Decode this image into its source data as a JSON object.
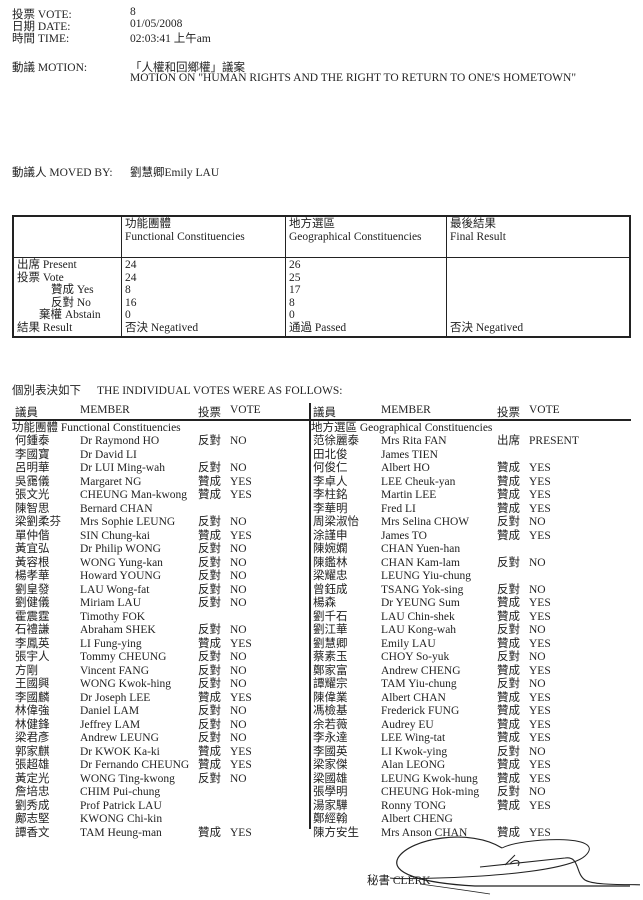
{
  "header": {
    "vote_label": "投票 VOTE:",
    "vote_value": "8",
    "date_label": "日期 DATE:",
    "date_value": "01/05/2008",
    "time_label": "時間 TIME:",
    "time_value": "02:03:41 上午am",
    "motion_label": "動議 MOTION:",
    "motion_zh": "「人權和回鄉權」議案",
    "motion_en": "MOTION ON \"HUMAN RIGHTS AND THE RIGHT TO RETURN TO ONE'S HOMETOWN\"",
    "moved_by_label": "動議人 MOVED BY:",
    "moved_by_value": "劉慧卿Emily LAU"
  },
  "summary": {
    "columns": [
      {
        "zh": "功能團體",
        "en": "Functional Constituencies"
      },
      {
        "zh": "地方選區",
        "en": "Geographical Constituencies"
      },
      {
        "zh": "最後結果",
        "en": "Final Result"
      }
    ],
    "row_labels": {
      "present": "出席 Present",
      "vote": "投票 Vote",
      "yes": "贊成 Yes",
      "no": "反對 No",
      "abstain": "棄權 Abstain",
      "result": "結果 Result"
    },
    "functional": {
      "present": "24",
      "vote": "24",
      "yes": "8",
      "no": "16",
      "abstain": "0",
      "result": "否決 Negatived"
    },
    "geographical": {
      "present": "26",
      "vote": "25",
      "yes": "17",
      "no": "8",
      "abstain": "0",
      "result": "通過 Passed"
    },
    "final": {
      "result": "否決 Negatived"
    }
  },
  "individual": {
    "title_zh": "個別表決如下",
    "title_en": "THE INDIVIDUAL VOTES WERE AS FOLLOWS:",
    "col_headers": {
      "member_zh": "議員",
      "member_en": "MEMBER",
      "vote_zh": "投票",
      "vote_en": "VOTE"
    },
    "functional": {
      "section": "功能團體 Functional Constituencies",
      "rows": [
        [
          "何鍾泰",
          "Dr Raymond HO",
          "反對",
          "NO"
        ],
        [
          "李國寶",
          "Dr David LI",
          "",
          ""
        ],
        [
          "呂明華",
          "Dr LUI Ming-wah",
          "反對",
          "NO"
        ],
        [
          "吳靄儀",
          "Margaret NG",
          "贊成",
          "YES"
        ],
        [
          "張文光",
          "CHEUNG Man-kwong",
          "贊成",
          "YES"
        ],
        [
          "陳智思",
          "Bernard CHAN",
          "",
          ""
        ],
        [
          "梁劉柔芬",
          "Mrs Sophie LEUNG",
          "反對",
          "NO"
        ],
        [
          "單仲偕",
          "SIN Chung-kai",
          "贊成",
          "YES"
        ],
        [
          "黃宜弘",
          "Dr Philip WONG",
          "反對",
          "NO"
        ],
        [
          "黃容根",
          "WONG Yung-kan",
          "反對",
          "NO"
        ],
        [
          "楊孝華",
          "Howard YOUNG",
          "反對",
          "NO"
        ],
        [
          "劉皇發",
          "LAU Wong-fat",
          "反對",
          "NO"
        ],
        [
          "劉健儀",
          "Miriam LAU",
          "反對",
          "NO"
        ],
        [
          "霍震霆",
          "Timothy FOK",
          "",
          ""
        ],
        [
          "石禮謙",
          "Abraham SHEK",
          "反對",
          "NO"
        ],
        [
          "李鳳英",
          "LI Fung-ying",
          "贊成",
          "YES"
        ],
        [
          "張宇人",
          "Tommy CHEUNG",
          "反對",
          "NO"
        ],
        [
          "方剛",
          "Vincent FANG",
          "反對",
          "NO"
        ],
        [
          "王國興",
          "WONG Kwok-hing",
          "反對",
          "NO"
        ],
        [
          "李國麟",
          "Dr Joseph LEE",
          "贊成",
          "YES"
        ],
        [
          "林偉強",
          "Daniel LAM",
          "反對",
          "NO"
        ],
        [
          "林健鋒",
          "Jeffrey LAM",
          "反對",
          "NO"
        ],
        [
          "梁君彥",
          "Andrew LEUNG",
          "反對",
          "NO"
        ],
        [
          "郭家麒",
          "Dr KWOK Ka-ki",
          "贊成",
          "YES"
        ],
        [
          "張超雄",
          "Dr Fernando CHEUNG",
          "贊成",
          "YES"
        ],
        [
          "黃定光",
          "WONG Ting-kwong",
          "反對",
          "NO"
        ],
        [
          "詹培忠",
          "CHIM Pui-chung",
          "",
          ""
        ],
        [
          "劉秀成",
          "Prof Patrick LAU",
          "",
          ""
        ],
        [
          "鄺志堅",
          "KWONG Chi-kin",
          "",
          ""
        ],
        [
          "譚香文",
          "TAM Heung-man",
          "贊成",
          "YES"
        ]
      ]
    },
    "geographical": {
      "section": "地方選區 Geographical Constituencies",
      "rows": [
        [
          "范徐麗泰",
          "Mrs Rita FAN",
          "出席",
          "PRESENT"
        ],
        [
          "田北俊",
          "James TIEN",
          "",
          ""
        ],
        [
          "何俊仁",
          "Albert HO",
          "贊成",
          "YES"
        ],
        [
          "李卓人",
          "LEE Cheuk-yan",
          "贊成",
          "YES"
        ],
        [
          "李柱銘",
          "Martin LEE",
          "贊成",
          "YES"
        ],
        [
          "李華明",
          "Fred LI",
          "贊成",
          "YES"
        ],
        [
          "周梁淑怡",
          "Mrs Selina CHOW",
          "反對",
          "NO"
        ],
        [
          "涂謹申",
          "James TO",
          "贊成",
          "YES"
        ],
        [
          "陳婉嫻",
          "CHAN Yuen-han",
          "",
          ""
        ],
        [
          "陳鑑林",
          "CHAN Kam-lam",
          "反對",
          "NO"
        ],
        [
          "梁耀忠",
          "LEUNG Yiu-chung",
          "",
          ""
        ],
        [
          "曾鈺成",
          "TSANG Yok-sing",
          "反對",
          "NO"
        ],
        [
          "楊森",
          "Dr YEUNG Sum",
          "贊成",
          "YES"
        ],
        [
          "劉千石",
          "LAU Chin-shek",
          "贊成",
          "YES"
        ],
        [
          "劉江華",
          "LAU Kong-wah",
          "反對",
          "NO"
        ],
        [
          "劉慧卿",
          "Emily LAU",
          "贊成",
          "YES"
        ],
        [
          "蔡素玉",
          "CHOY So-yuk",
          "反對",
          "NO"
        ],
        [
          "鄭家富",
          "Andrew CHENG",
          "贊成",
          "YES"
        ],
        [
          "譚耀宗",
          "TAM Yiu-chung",
          "反對",
          "NO"
        ],
        [
          "陳偉業",
          "Albert CHAN",
          "贊成",
          "YES"
        ],
        [
          "馮檢基",
          "Frederick FUNG",
          "贊成",
          "YES"
        ],
        [
          "余若薇",
          "Audrey EU",
          "贊成",
          "YES"
        ],
        [
          "李永達",
          "LEE Wing-tat",
          "贊成",
          "YES"
        ],
        [
          "李國英",
          "LI Kwok-ying",
          "反對",
          "NO"
        ],
        [
          "梁家傑",
          "Alan LEONG",
          "贊成",
          "YES"
        ],
        [
          "梁國雄",
          "LEUNG Kwok-hung",
          "贊成",
          "YES"
        ],
        [
          "張學明",
          "CHEUNG Hok-ming",
          "反對",
          "NO"
        ],
        [
          "湯家驊",
          "Ronny TONG",
          "贊成",
          "YES"
        ],
        [
          "鄭經翰",
          "Albert CHENG",
          "",
          ""
        ],
        [
          "陳方安生",
          "Mrs Anson CHAN",
          "贊成",
          "YES"
        ]
      ]
    }
  },
  "footer": {
    "clerk_label": "秘書 CLERK"
  }
}
